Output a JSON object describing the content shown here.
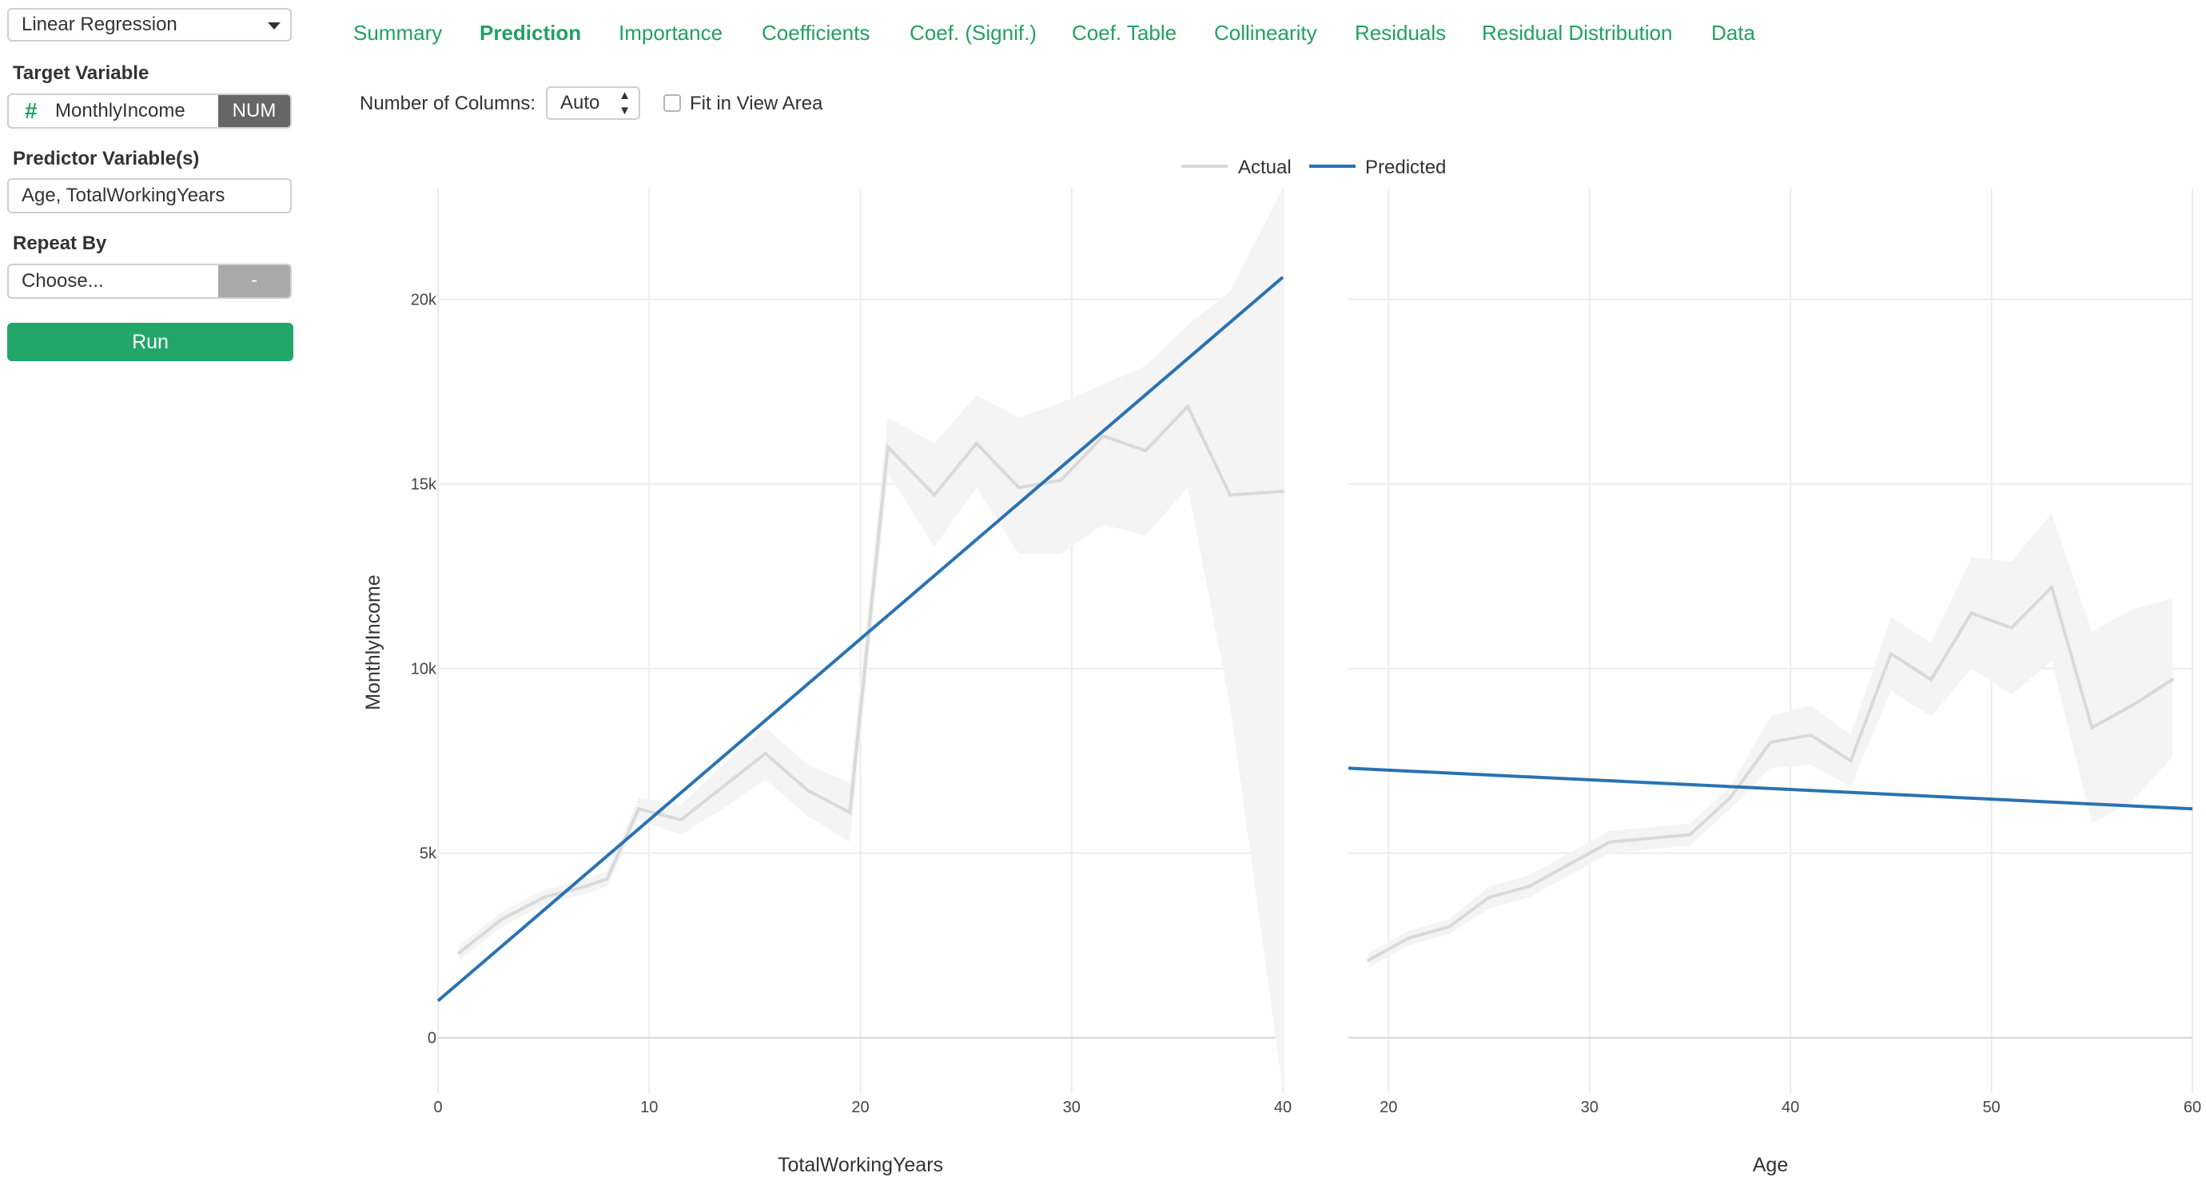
{
  "sidebar": {
    "model_select": "Linear Regression",
    "target_label": "Target Variable",
    "target_value": "MonthlyIncome",
    "target_type": "NUM",
    "predictor_label": "Predictor Variable(s)",
    "predictor_value": "Age, TotalWorkingYears",
    "repeat_label": "Repeat By",
    "repeat_placeholder": "Choose...",
    "repeat_button": "-",
    "run_label": "Run"
  },
  "tabs": [
    {
      "label": "Summary",
      "active": false
    },
    {
      "label": "Prediction",
      "active": true
    },
    {
      "label": "Importance",
      "active": false
    },
    {
      "label": "Coefficients",
      "active": false
    },
    {
      "label": "Coef. (Signif.)",
      "active": false
    },
    {
      "label": "Coef. Table",
      "active": false
    },
    {
      "label": "Collinearity",
      "active": false
    },
    {
      "label": "Residuals",
      "active": false
    },
    {
      "label": "Residual Distribution",
      "active": false
    },
    {
      "label": "Data",
      "active": false
    }
  ],
  "options": {
    "columns_label": "Number of Columns:",
    "columns_value": "Auto",
    "fit_label": "Fit in View Area",
    "fit_checked": false
  },
  "colors": {
    "accent": "#20a160",
    "actual": "#d9d9d9",
    "band": "#f3f4f3",
    "predicted": "#2a72b0"
  },
  "chart_data": {
    "type": "line",
    "legend": [
      {
        "name": "Actual",
        "color": "#d9d9d9"
      },
      {
        "name": "Predicted",
        "color": "#2a72b0"
      }
    ],
    "legend_position": "top-center",
    "ylabel": "MonthlyIncome",
    "y_ticks": [
      {
        "value": 0,
        "label": "0"
      },
      {
        "value": 5000,
        "label": "5k"
      },
      {
        "value": 10000,
        "label": "10k"
      },
      {
        "value": 15000,
        "label": "15k"
      },
      {
        "value": 20000,
        "label": "20k"
      }
    ],
    "ylim": [
      -1500,
      23000
    ],
    "grid": true,
    "panels": [
      {
        "xlabel": "TotalWorkingYears",
        "xlim": [
          0,
          40
        ],
        "x_ticks": [
          0,
          10,
          20,
          30,
          40
        ],
        "actual": {
          "x": [
            1,
            3,
            5,
            7,
            8,
            9.5,
            11.5,
            13.5,
            15.5,
            17.5,
            19.5,
            21.3,
            23.5,
            25.5,
            27.5,
            29.5,
            31.5,
            33.5,
            35.5,
            37.5,
            40
          ],
          "y": [
            2300,
            3200,
            3800,
            4100,
            4300,
            6200,
            5900,
            6800,
            7700,
            6700,
            6100,
            16000,
            14700,
            16100,
            14900,
            15100,
            16300,
            15900,
            17100,
            14700,
            14800
          ],
          "lower": [
            2100,
            3000,
            3600,
            3900,
            4100,
            5900,
            5500,
            6200,
            7000,
            6000,
            5300,
            15300,
            13300,
            14900,
            13100,
            13100,
            13900,
            13600,
            14900,
            9000,
            -1400
          ],
          "upper": [
            2500,
            3400,
            4000,
            4300,
            4500,
            6500,
            6300,
            7400,
            8400,
            7400,
            6900,
            16800,
            16100,
            17400,
            16800,
            17200,
            17700,
            18200,
            19300,
            20200,
            23000
          ]
        },
        "predicted": {
          "x": [
            0,
            40
          ],
          "y": [
            1000,
            20600
          ]
        }
      },
      {
        "xlabel": "Age",
        "xlim": [
          18,
          60
        ],
        "x_ticks": [
          20,
          30,
          40,
          50,
          60
        ],
        "actual": {
          "x": [
            19,
            21,
            23,
            25,
            27,
            29,
            31,
            33,
            35,
            37,
            39,
            41,
            43,
            45,
            47,
            49,
            51,
            53,
            55,
            57,
            59
          ],
          "y": [
            2100,
            2700,
            3000,
            3800,
            4100,
            4700,
            5300,
            5400,
            5500,
            6500,
            8000,
            8200,
            7500,
            10400,
            9700,
            11500,
            11100,
            12200,
            8400,
            9000,
            9700
          ],
          "lower": [
            1900,
            2500,
            2800,
            3500,
            3800,
            4400,
            5000,
            5100,
            5200,
            6200,
            7300,
            7400,
            6800,
            9400,
            8700,
            10000,
            9300,
            10200,
            5800,
            6400,
            7600
          ],
          "upper": [
            2300,
            2900,
            3200,
            4100,
            4400,
            5000,
            5600,
            5700,
            5800,
            6800,
            8700,
            9000,
            8200,
            11400,
            10700,
            13000,
            12900,
            14200,
            11000,
            11600,
            11900
          ]
        },
        "predicted": {
          "x": [
            18,
            60
          ],
          "y": [
            7300,
            6200
          ]
        }
      }
    ]
  }
}
